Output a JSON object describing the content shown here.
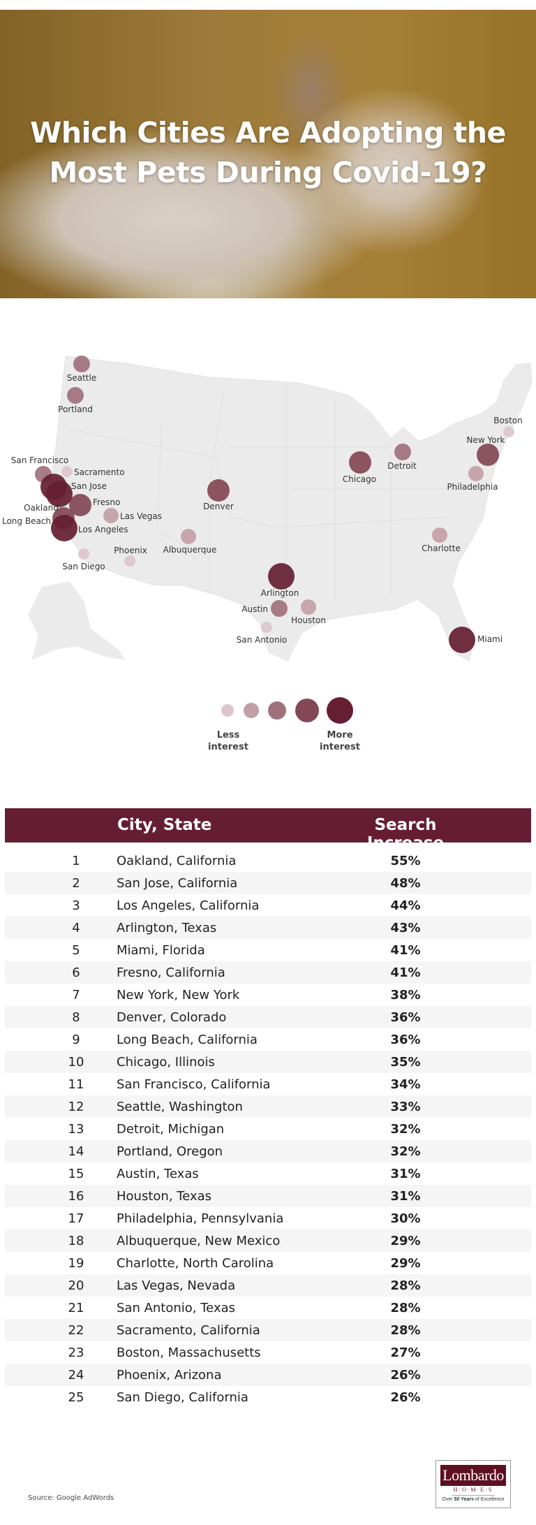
{
  "title": "Which Cities Are Adopting the Most Pets During Covid-19?",
  "colors": {
    "accent": "#651d32",
    "level1": "#dcc5cb",
    "level2": "#c29fa6",
    "level3": "#a0717d",
    "level4": "#834755",
    "level5": "#651e32"
  },
  "chart_data": {
    "type": "bubble-map",
    "title": "Which Cities Are Adopting the Most Pets During Covid-19?",
    "scale": "interest level 1 (less) to 5 (more)",
    "cities": [
      {
        "name": "Seattle",
        "level": 3
      },
      {
        "name": "Portland",
        "level": 3
      },
      {
        "name": "San Francisco",
        "level": 3
      },
      {
        "name": "Sacramento",
        "level": 1
      },
      {
        "name": "San Jose",
        "level": 5
      },
      {
        "name": "Oakland",
        "level": 5
      },
      {
        "name": "Fresno",
        "level": 4
      },
      {
        "name": "Las Vegas",
        "level": 2
      },
      {
        "name": "Long Beach",
        "level": 4
      },
      {
        "name": "Los Angeles",
        "level": 5
      },
      {
        "name": "San Diego",
        "level": 1
      },
      {
        "name": "Phoenix",
        "level": 1
      },
      {
        "name": "Albuquerque",
        "level": 2
      },
      {
        "name": "Denver",
        "level": 4
      },
      {
        "name": "Arlington",
        "level": 5
      },
      {
        "name": "Austin",
        "level": 3
      },
      {
        "name": "Houston",
        "level": 2
      },
      {
        "name": "San Antonio",
        "level": 1
      },
      {
        "name": "Chicago",
        "level": 4
      },
      {
        "name": "Detroit",
        "level": 3
      },
      {
        "name": "Boston",
        "level": 1
      },
      {
        "name": "New York",
        "level": 4
      },
      {
        "name": "Philadelphia",
        "level": 2
      },
      {
        "name": "Charlotte",
        "level": 2
      },
      {
        "name": "Miami",
        "level": 5
      }
    ],
    "legend": {
      "less_line1": "Less",
      "less_line2": "interest",
      "more_line1": "More",
      "more_line2": "interest",
      "levels": [
        1,
        2,
        3,
        4,
        5
      ]
    }
  },
  "table": {
    "headers": {
      "city": "City, State",
      "increase": "Search Increase"
    },
    "rows": [
      {
        "rank": "1",
        "city": "Oakland, California",
        "increase": "55%"
      },
      {
        "rank": "2",
        "city": "San Jose, California",
        "increase": "48%"
      },
      {
        "rank": "3",
        "city": "Los Angeles, California",
        "increase": "44%"
      },
      {
        "rank": "4",
        "city": "Arlington, Texas",
        "increase": "43%"
      },
      {
        "rank": "5",
        "city": "Miami, Florida",
        "increase": "41%"
      },
      {
        "rank": "6",
        "city": "Fresno, California",
        "increase": "41%"
      },
      {
        "rank": "7",
        "city": "New York, New York",
        "increase": "38%"
      },
      {
        "rank": "8",
        "city": "Denver, Colorado",
        "increase": "36%"
      },
      {
        "rank": "9",
        "city": "Long Beach, California",
        "increase": "36%"
      },
      {
        "rank": "10",
        "city": "Chicago, Illinois",
        "increase": "35%"
      },
      {
        "rank": "11",
        "city": "San Francisco, California",
        "increase": "34%"
      },
      {
        "rank": "12",
        "city": "Seattle, Washington",
        "increase": "33%"
      },
      {
        "rank": "13",
        "city": "Detroit, Michigan",
        "increase": "32%"
      },
      {
        "rank": "14",
        "city": "Portland, Oregon",
        "increase": "32%"
      },
      {
        "rank": "15",
        "city": "Austin, Texas",
        "increase": "31%"
      },
      {
        "rank": "16",
        "city": "Houston, Texas",
        "increase": "31%"
      },
      {
        "rank": "17",
        "city": "Philadelphia, Pennsylvania",
        "increase": "30%"
      },
      {
        "rank": "18",
        "city": "Albuquerque, New Mexico",
        "increase": "29%"
      },
      {
        "rank": "19",
        "city": "Charlotte, North Carolina",
        "increase": "29%"
      },
      {
        "rank": "20",
        "city": "Las Vegas, Nevada",
        "increase": "28%"
      },
      {
        "rank": "21",
        "city": "San Antonio, Texas",
        "increase": "28%"
      },
      {
        "rank": "22",
        "city": "Sacramento, California",
        "increase": "28%"
      },
      {
        "rank": "23",
        "city": "Boston, Massachusetts",
        "increase": "27%"
      },
      {
        "rank": "24",
        "city": "Phoenix, Arizona",
        "increase": "26%"
      },
      {
        "rank": "25",
        "city": "San Diego, California",
        "increase": "26%"
      }
    ]
  },
  "footer": {
    "source": "Source: Google AdWords"
  },
  "logo": {
    "brand": "Lombardo",
    "sub": "H·O·M·E·S",
    "tagline": "Over 50 Years of Excellence"
  }
}
